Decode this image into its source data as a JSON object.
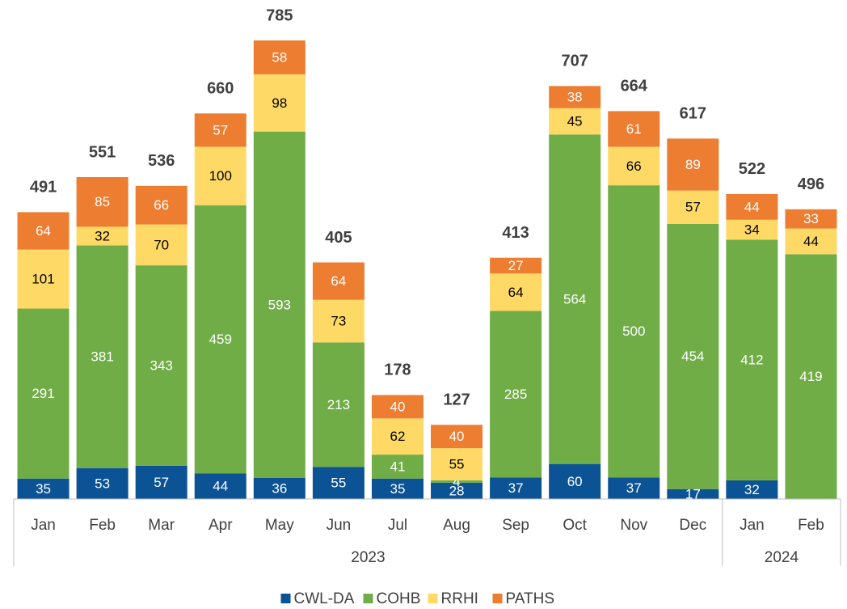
{
  "chart_data": {
    "type": "stacked_bar",
    "categories": [
      "Jan",
      "Feb",
      "Mar",
      "Apr",
      "May",
      "Jun",
      "Jul",
      "Aug",
      "Sep",
      "Oct",
      "Nov",
      "Dec",
      "Jan",
      "Feb"
    ],
    "years": [
      "2023",
      "2023",
      "2023",
      "2023",
      "2023",
      "2023",
      "2023",
      "2023",
      "2023",
      "2023",
      "2023",
      "2023",
      "2024",
      "2024"
    ],
    "series": [
      {
        "name": "CWL-DA",
        "color": "#0b5394",
        "label_color": "#ffffff",
        "values": [
          35,
          53,
          57,
          44,
          36,
          55,
          35,
          28,
          37,
          60,
          37,
          17,
          32,
          null
        ]
      },
      {
        "name": "COHB",
        "color": "#70ad47",
        "label_color": "#ffffff",
        "values": [
          291,
          381,
          343,
          459,
          593,
          213,
          41,
          4,
          285,
          564,
          500,
          454,
          412,
          419
        ]
      },
      {
        "name": "RRHI",
        "color": "#ffd966",
        "label_color": "#000000",
        "values": [
          101,
          32,
          70,
          100,
          98,
          73,
          62,
          55,
          64,
          45,
          66,
          57,
          34,
          44
        ]
      },
      {
        "name": "PATHS",
        "color": "#ed7d31",
        "label_color": "#ffffff",
        "values": [
          64,
          85,
          66,
          57,
          58,
          64,
          40,
          40,
          27,
          38,
          61,
          89,
          44,
          33
        ]
      }
    ],
    "totals": [
      491,
      551,
      536,
      660,
      785,
      405,
      178,
      127,
      413,
      707,
      664,
      617,
      522,
      496
    ],
    "legend": "bottom"
  }
}
